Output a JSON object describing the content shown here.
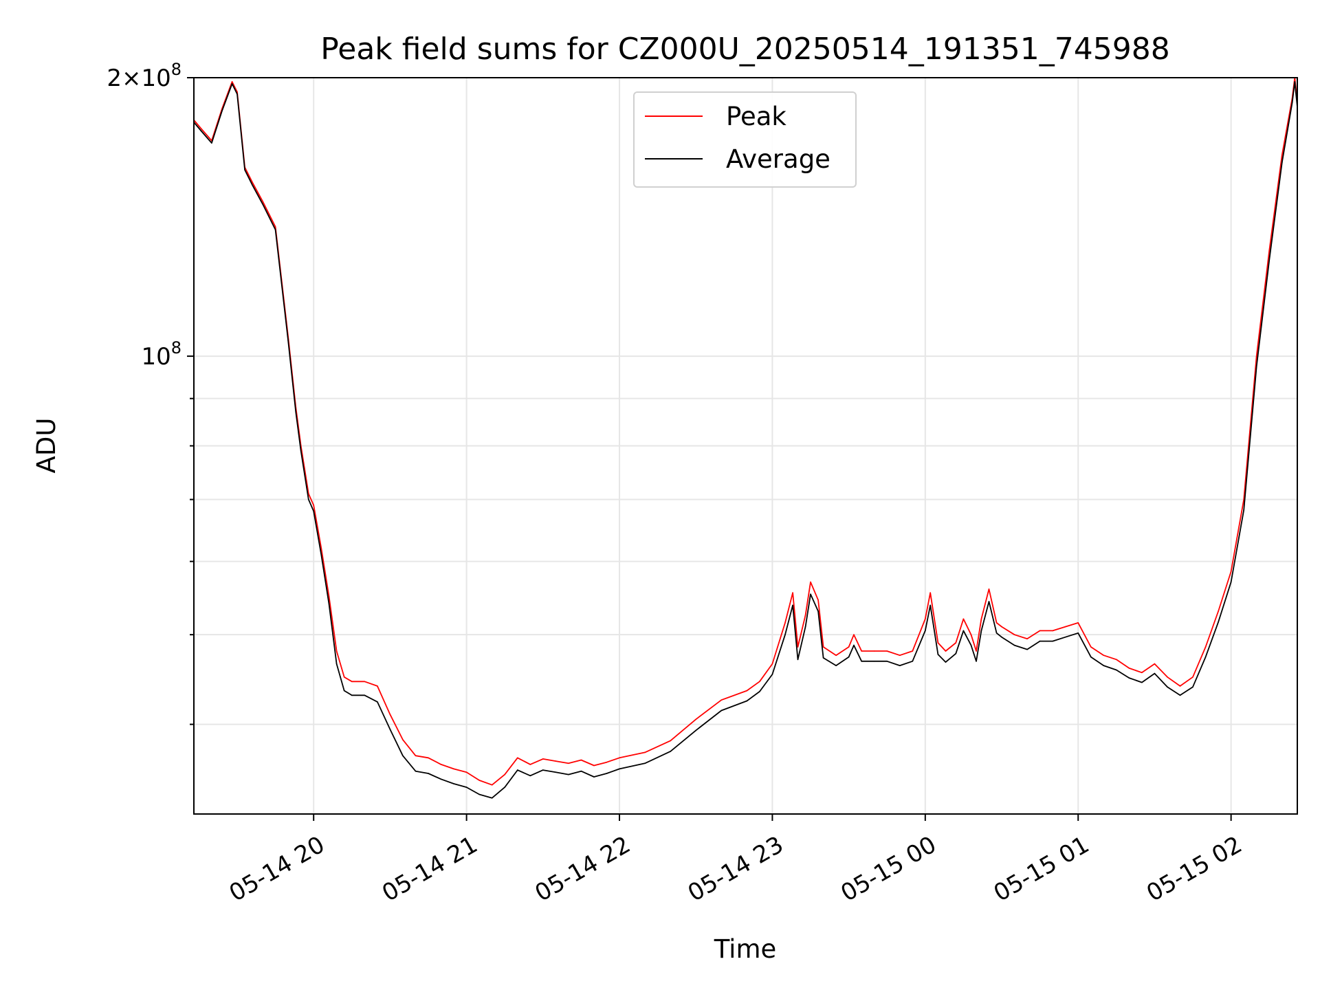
{
  "chart_data": {
    "type": "line",
    "title": "Peak field sums for CZ000U_20250514_191351_745988",
    "xlabel": "Time",
    "ylabel": "ADU",
    "y_scale": "log",
    "ylim": [
      32000000,
      200000000
    ],
    "xlim": [
      "2025-05-14 19:13",
      "2025-05-15 02:26"
    ],
    "grid": true,
    "legend_position": "top-center",
    "x_ticks": [
      "2025-05-14 20:00",
      "2025-05-14 21:00",
      "2025-05-14 22:00",
      "2025-05-14 23:00",
      "2025-05-15 00:00",
      "2025-05-15 01:00",
      "2025-05-15 02:00"
    ],
    "x_tick_labels": [
      "05-14 20",
      "05-14 21",
      "05-14 22",
      "05-14 23",
      "05-15 00",
      "05-15 01",
      "05-15 02"
    ],
    "y_major_ticks": [
      100000000,
      200000000
    ],
    "y_major_tick_labels": [
      {
        "base": "10",
        "exp": "8"
      },
      {
        "prefix": "2×",
        "base": "10",
        "exp": "8"
      }
    ],
    "y_minor_ticks": [
      40000000,
      50000000,
      60000000,
      70000000,
      80000000,
      90000000
    ],
    "series": [
      {
        "name": "Peak",
        "color": "#ff0000",
        "x": [
          "2025-05-14 19:13",
          "2025-05-14 19:16",
          "2025-05-14 19:20",
          "2025-05-14 19:24",
          "2025-05-14 19:28",
          "2025-05-14 19:30",
          "2025-05-14 19:33",
          "2025-05-14 19:36",
          "2025-05-14 19:40",
          "2025-05-14 19:45",
          "2025-05-14 19:50",
          "2025-05-14 19:53",
          "2025-05-14 19:55",
          "2025-05-14 19:58",
          "2025-05-14 20:00",
          "2025-05-14 20:03",
          "2025-05-14 20:06",
          "2025-05-14 20:09",
          "2025-05-14 20:12",
          "2025-05-14 20:15",
          "2025-05-14 20:20",
          "2025-05-14 20:25",
          "2025-05-14 20:30",
          "2025-05-14 20:35",
          "2025-05-14 20:40",
          "2025-05-14 20:45",
          "2025-05-14 20:50",
          "2025-05-14 20:55",
          "2025-05-14 21:00",
          "2025-05-14 21:05",
          "2025-05-14 21:10",
          "2025-05-14 21:15",
          "2025-05-14 21:20",
          "2025-05-14 21:25",
          "2025-05-14 21:30",
          "2025-05-14 21:35",
          "2025-05-14 21:40",
          "2025-05-14 21:45",
          "2025-05-14 21:50",
          "2025-05-14 21:55",
          "2025-05-14 22:00",
          "2025-05-14 22:10",
          "2025-05-14 22:20",
          "2025-05-14 22:30",
          "2025-05-14 22:40",
          "2025-05-14 22:50",
          "2025-05-14 22:55",
          "2025-05-14 23:00",
          "2025-05-14 23:05",
          "2025-05-14 23:08",
          "2025-05-14 23:10",
          "2025-05-14 23:13",
          "2025-05-14 23:15",
          "2025-05-14 23:18",
          "2025-05-14 23:20",
          "2025-05-14 23:25",
          "2025-05-14 23:30",
          "2025-05-14 23:32",
          "2025-05-14 23:35",
          "2025-05-14 23:40",
          "2025-05-14 23:45",
          "2025-05-14 23:50",
          "2025-05-14 23:55",
          "2025-05-15 00:00",
          "2025-05-15 00:02",
          "2025-05-15 00:05",
          "2025-05-15 00:08",
          "2025-05-15 00:12",
          "2025-05-15 00:15",
          "2025-05-15 00:18",
          "2025-05-15 00:20",
          "2025-05-15 00:22",
          "2025-05-15 00:25",
          "2025-05-15 00:28",
          "2025-05-15 00:30",
          "2025-05-15 00:35",
          "2025-05-15 00:40",
          "2025-05-15 00:45",
          "2025-05-15 00:50",
          "2025-05-15 00:55",
          "2025-05-15 01:00",
          "2025-05-15 01:05",
          "2025-05-15 01:10",
          "2025-05-15 01:15",
          "2025-05-15 01:20",
          "2025-05-15 01:25",
          "2025-05-15 01:30",
          "2025-05-15 01:35",
          "2025-05-15 01:40",
          "2025-05-15 01:45",
          "2025-05-15 01:50",
          "2025-05-15 01:55",
          "2025-05-15 02:00",
          "2025-05-15 02:05",
          "2025-05-15 02:10",
          "2025-05-15 02:15",
          "2025-05-15 02:20",
          "2025-05-15 02:24",
          "2025-05-15 02:25",
          "2025-05-15 02:26"
        ],
        "y": [
          180000000,
          176000000,
          171000000,
          185000000,
          198000000,
          193000000,
          160000000,
          154000000,
          147000000,
          138000000,
          105000000,
          88000000,
          80000000,
          71000000,
          69000000,
          62000000,
          55000000,
          48000000,
          45000000,
          44500000,
          44500000,
          44000000,
          41000000,
          38500000,
          37000000,
          36800000,
          36200000,
          35800000,
          35500000,
          34800000,
          34400000,
          35300000,
          36800000,
          36200000,
          36700000,
          36500000,
          36300000,
          36600000,
          36100000,
          36400000,
          36800000,
          37300000,
          38400000,
          40500000,
          42500000,
          43500000,
          44500000,
          46500000,
          51500000,
          55500000,
          48500000,
          52500000,
          57000000,
          54500000,
          48500000,
          47500000,
          48500000,
          50000000,
          48000000,
          48000000,
          48000000,
          47500000,
          48000000,
          52000000,
          55500000,
          49000000,
          48000000,
          49000000,
          52000000,
          50000000,
          48000000,
          52000000,
          56000000,
          51500000,
          51000000,
          50000000,
          49500000,
          50500000,
          50500000,
          51000000,
          51500000,
          48500000,
          47500000,
          47000000,
          46000000,
          45500000,
          46500000,
          45000000,
          44000000,
          45000000,
          48500000,
          53000000,
          58500000,
          70000000,
          100000000,
          130000000,
          165000000,
          190000000,
          200000000,
          188000000
        ]
      },
      {
        "name": "Average",
        "color": "#000000",
        "x": [
          "2025-05-14 19:13",
          "2025-05-14 19:16",
          "2025-05-14 19:20",
          "2025-05-14 19:24",
          "2025-05-14 19:28",
          "2025-05-14 19:30",
          "2025-05-14 19:33",
          "2025-05-14 19:36",
          "2025-05-14 19:40",
          "2025-05-14 19:45",
          "2025-05-14 19:50",
          "2025-05-14 19:53",
          "2025-05-14 19:55",
          "2025-05-14 19:58",
          "2025-05-14 20:00",
          "2025-05-14 20:03",
          "2025-05-14 20:06",
          "2025-05-14 20:09",
          "2025-05-14 20:12",
          "2025-05-14 20:15",
          "2025-05-14 20:20",
          "2025-05-14 20:25",
          "2025-05-14 20:30",
          "2025-05-14 20:35",
          "2025-05-14 20:40",
          "2025-05-14 20:45",
          "2025-05-14 20:50",
          "2025-05-14 20:55",
          "2025-05-14 21:00",
          "2025-05-14 21:05",
          "2025-05-14 21:10",
          "2025-05-14 21:15",
          "2025-05-14 21:20",
          "2025-05-14 21:25",
          "2025-05-14 21:30",
          "2025-05-14 21:35",
          "2025-05-14 21:40",
          "2025-05-14 21:45",
          "2025-05-14 21:50",
          "2025-05-14 21:55",
          "2025-05-14 22:00",
          "2025-05-14 22:10",
          "2025-05-14 22:20",
          "2025-05-14 22:30",
          "2025-05-14 22:40",
          "2025-05-14 22:50",
          "2025-05-14 22:55",
          "2025-05-14 23:00",
          "2025-05-14 23:05",
          "2025-05-14 23:08",
          "2025-05-14 23:10",
          "2025-05-14 23:13",
          "2025-05-14 23:15",
          "2025-05-14 23:18",
          "2025-05-14 23:20",
          "2025-05-14 23:25",
          "2025-05-14 23:30",
          "2025-05-14 23:32",
          "2025-05-14 23:35",
          "2025-05-14 23:40",
          "2025-05-14 23:45",
          "2025-05-14 23:50",
          "2025-05-14 23:55",
          "2025-05-15 00:00",
          "2025-05-15 00:02",
          "2025-05-15 00:05",
          "2025-05-15 00:08",
          "2025-05-15 00:12",
          "2025-05-15 00:15",
          "2025-05-15 00:18",
          "2025-05-15 00:20",
          "2025-05-15 00:22",
          "2025-05-15 00:25",
          "2025-05-15 00:28",
          "2025-05-15 00:30",
          "2025-05-15 00:35",
          "2025-05-15 00:40",
          "2025-05-15 00:45",
          "2025-05-15 00:50",
          "2025-05-15 00:55",
          "2025-05-15 01:00",
          "2025-05-15 01:05",
          "2025-05-15 01:10",
          "2025-05-15 01:15",
          "2025-05-15 01:20",
          "2025-05-15 01:25",
          "2025-05-15 01:30",
          "2025-05-15 01:35",
          "2025-05-15 01:40",
          "2025-05-15 01:45",
          "2025-05-15 01:50",
          "2025-05-15 01:55",
          "2025-05-15 02:00",
          "2025-05-15 02:05",
          "2025-05-15 02:10",
          "2025-05-15 02:15",
          "2025-05-15 02:20",
          "2025-05-15 02:24",
          "2025-05-15 02:25",
          "2025-05-15 02:26"
        ],
        "y": [
          179000000,
          175000000,
          170000000,
          184000000,
          197000000,
          192000000,
          159000000,
          153000000,
          146000000,
          137000000,
          104000000,
          87000000,
          79000000,
          70000000,
          68000000,
          61000000,
          54000000,
          46500000,
          43500000,
          43000000,
          43000000,
          42300000,
          39500000,
          37000000,
          35600000,
          35400000,
          34900000,
          34500000,
          34200000,
          33600000,
          33300000,
          34200000,
          35700000,
          35200000,
          35700000,
          35500000,
          35300000,
          35600000,
          35100000,
          35400000,
          35800000,
          36300000,
          37400000,
          39400000,
          41400000,
          42400000,
          43400000,
          45300000,
          50000000,
          53800000,
          47000000,
          51000000,
          55300000,
          53000000,
          47200000,
          46300000,
          47300000,
          48700000,
          46800000,
          46800000,
          46800000,
          46300000,
          46800000,
          50500000,
          53800000,
          47600000,
          46700000,
          47700000,
          50500000,
          48700000,
          46800000,
          50500000,
          54300000,
          50200000,
          49700000,
          48700000,
          48200000,
          49200000,
          49200000,
          49700000,
          50200000,
          47300000,
          46300000,
          45800000,
          44900000,
          44400000,
          45400000,
          43900000,
          43000000,
          43900000,
          47300000,
          51600000,
          57000000,
          68200000,
          97500000,
          127000000,
          162000000,
          188000000,
          198000000,
          186000000
        ]
      }
    ]
  }
}
